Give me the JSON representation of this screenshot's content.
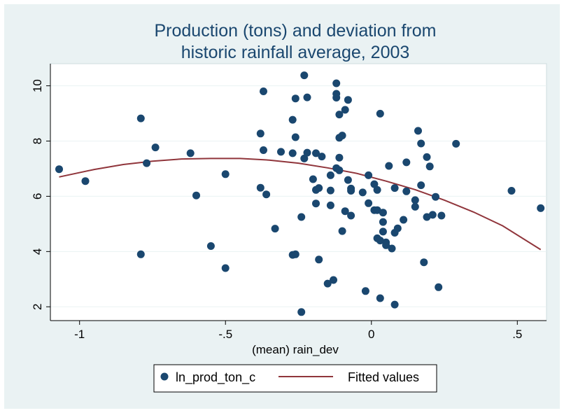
{
  "chart_data": {
    "type": "scatter",
    "title": [
      "Production (tons) and deviation from",
      "historic rainfall average, 2003"
    ],
    "xlabel": "(mean) rain_dev",
    "ylabel": "",
    "xlim": [
      -1.1,
      0.6
    ],
    "ylim": [
      1.5,
      10.8
    ],
    "x_ticks": [
      -1,
      -0.5,
      0,
      0.5
    ],
    "x_tick_labels": [
      "-1",
      "-.5",
      "0",
      ".5"
    ],
    "y_ticks": [
      2,
      4,
      6,
      8,
      10
    ],
    "y_tick_labels": [
      "2",
      "4",
      "6",
      "8",
      "10"
    ],
    "grid": "horizontal",
    "legend_position": "bottom",
    "colors": {
      "points": "#1a476f",
      "line": "#90353b",
      "title": "#1a476f",
      "plot_bg": "#ffffff",
      "outer_bg": "#eaf2f3"
    },
    "series": [
      {
        "name": "ln_prod_ton_c",
        "type": "scatter",
        "points": [
          [
            -1.07,
            6.98
          ],
          [
            -0.98,
            6.55
          ],
          [
            -0.79,
            8.82
          ],
          [
            -0.79,
            3.9
          ],
          [
            -0.77,
            7.2
          ],
          [
            -0.74,
            7.77
          ],
          [
            -0.62,
            7.56
          ],
          [
            -0.6,
            6.03
          ],
          [
            -0.55,
            4.2
          ],
          [
            -0.5,
            6.8
          ],
          [
            -0.5,
            3.4
          ],
          [
            -0.38,
            8.27
          ],
          [
            -0.38,
            6.31
          ],
          [
            -0.37,
            7.67
          ],
          [
            -0.37,
            9.8
          ],
          [
            -0.36,
            6.07
          ],
          [
            -0.33,
            4.83
          ],
          [
            -0.31,
            7.61
          ],
          [
            -0.27,
            8.77
          ],
          [
            -0.27,
            7.56
          ],
          [
            -0.27,
            3.88
          ],
          [
            -0.26,
            3.9
          ],
          [
            -0.26,
            9.54
          ],
          [
            -0.26,
            8.14
          ],
          [
            -0.24,
            5.25
          ],
          [
            -0.24,
            1.81
          ],
          [
            -0.23,
            7.37
          ],
          [
            -0.23,
            10.38
          ],
          [
            -0.22,
            9.58
          ],
          [
            -0.22,
            7.58
          ],
          [
            -0.2,
            6.62
          ],
          [
            -0.19,
            5.74
          ],
          [
            -0.19,
            6.23
          ],
          [
            -0.19,
            7.56
          ],
          [
            -0.18,
            3.71
          ],
          [
            -0.18,
            6.3
          ],
          [
            -0.17,
            7.44
          ],
          [
            -0.15,
            2.84
          ],
          [
            -0.14,
            6.21
          ],
          [
            -0.14,
            5.67
          ],
          [
            -0.14,
            6.76
          ],
          [
            -0.13,
            2.97
          ],
          [
            -0.12,
            7.02
          ],
          [
            -0.12,
            9.57
          ],
          [
            -0.12,
            9.71
          ],
          [
            -0.12,
            10.09
          ],
          [
            -0.11,
            7.4
          ],
          [
            -0.11,
            6.94
          ],
          [
            -0.11,
            8.96
          ],
          [
            -0.11,
            8.12
          ],
          [
            -0.1,
            8.2
          ],
          [
            -0.1,
            4.74
          ],
          [
            -0.09,
            5.46
          ],
          [
            -0.09,
            9.13
          ],
          [
            -0.08,
            6.59
          ],
          [
            -0.08,
            9.49
          ],
          [
            -0.07,
            6.28
          ],
          [
            -0.07,
            6.2
          ],
          [
            -0.07,
            5.3
          ],
          [
            -0.03,
            6.14
          ],
          [
            -0.02,
            2.57
          ],
          [
            -0.01,
            6.76
          ],
          [
            -0.01,
            5.75
          ],
          [
            0.01,
            5.5
          ],
          [
            0.01,
            6.44
          ],
          [
            0.02,
            5.5
          ],
          [
            0.02,
            4.48
          ],
          [
            0.02,
            6.23
          ],
          [
            0.03,
            4.4
          ],
          [
            0.03,
            2.31
          ],
          [
            0.03,
            8.99
          ],
          [
            0.04,
            5.41
          ],
          [
            0.04,
            4.72
          ],
          [
            0.04,
            5.07
          ],
          [
            0.05,
            4.33
          ],
          [
            0.05,
            4.23
          ],
          [
            0.06,
            7.1
          ],
          [
            0.07,
            4.11
          ],
          [
            0.08,
            6.3
          ],
          [
            0.08,
            2.08
          ],
          [
            0.08,
            4.68
          ],
          [
            0.09,
            4.84
          ],
          [
            0.11,
            5.15
          ],
          [
            0.12,
            7.23
          ],
          [
            0.12,
            6.18
          ],
          [
            0.15,
            5.86
          ],
          [
            0.15,
            5.62
          ],
          [
            0.16,
            8.37
          ],
          [
            0.17,
            6.4
          ],
          [
            0.17,
            7.91
          ],
          [
            0.18,
            3.61
          ],
          [
            0.19,
            7.42
          ],
          [
            0.19,
            5.25
          ],
          [
            0.2,
            7.08
          ],
          [
            0.21,
            5.33
          ],
          [
            0.22,
            5.98
          ],
          [
            0.23,
            2.71
          ],
          [
            0.24,
            5.3
          ],
          [
            0.29,
            7.9
          ],
          [
            0.48,
            6.2
          ],
          [
            0.58,
            5.57
          ]
        ]
      },
      {
        "name": "Fitted values",
        "type": "line",
        "points": [
          [
            -1.07,
            6.7
          ],
          [
            -0.95,
            6.97
          ],
          [
            -0.85,
            7.15
          ],
          [
            -0.75,
            7.27
          ],
          [
            -0.65,
            7.35
          ],
          [
            -0.55,
            7.37
          ],
          [
            -0.45,
            7.37
          ],
          [
            -0.35,
            7.31
          ],
          [
            -0.25,
            7.2
          ],
          [
            -0.15,
            7.03
          ],
          [
            -0.05,
            6.83
          ],
          [
            0.05,
            6.55
          ],
          [
            0.15,
            6.24
          ],
          [
            0.25,
            5.86
          ],
          [
            0.35,
            5.43
          ],
          [
            0.45,
            4.93
          ],
          [
            0.58,
            4.07
          ]
        ]
      }
    ]
  }
}
